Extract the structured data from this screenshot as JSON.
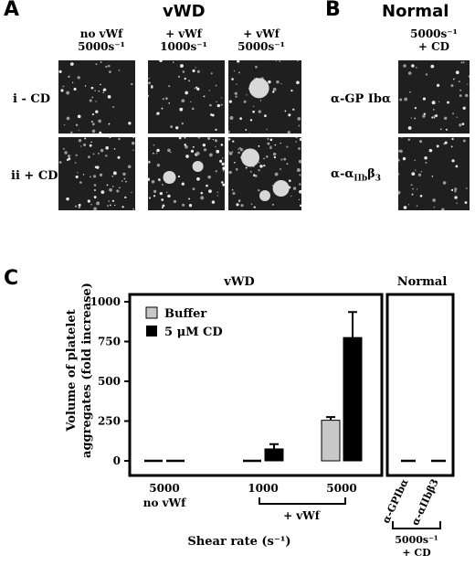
{
  "panelA": {
    "letter": "A",
    "title": "vWD",
    "col1": [
      "no vWf",
      "5000s⁻¹"
    ],
    "col2": [
      "+ vWf",
      "1000s⁻¹"
    ],
    "col3": [
      "+ vWf",
      "5000s⁻¹"
    ],
    "row1": "i - CD",
    "row2": "ii + CD"
  },
  "panelB": {
    "letter": "B",
    "title": "Normal",
    "col": [
      "5000s⁻¹",
      "+ CD"
    ],
    "row1": "α-GP Ibα",
    "row2_main": "α-α",
    "row2_sub": "IIb",
    "row2_tail": "β",
    "row2_sub2": "3"
  },
  "panelC": {
    "letter": "C",
    "group_left": "vWD",
    "group_right": "Normal",
    "ylabel_line1": "Volume of platelet",
    "ylabel_line2": "aggregates (fold increase)",
    "xlabel": "Shear rate (s⁻¹)",
    "bracket_label": "+ vWf",
    "cat_labels": [
      "5000",
      "1000",
      "5000"
    ],
    "cat_sub": "no vWf",
    "normal_cats": [
      "α-GPIbα",
      "α-αIIbβ3"
    ],
    "normal_footer": [
      "5000s⁻¹",
      "+ CD"
    ]
  },
  "chart_data": {
    "type": "bar",
    "ylim": [
      0,
      1000
    ],
    "yticks": [
      0,
      250,
      500,
      750,
      1000
    ],
    "legend": [
      "Buffer",
      "5 μM CD"
    ],
    "legend_placement": "top-left",
    "colors": {
      "Buffer": "#c8c8c8",
      "5 μM CD": "#000000"
    },
    "categories": [
      "5000 no vWf",
      "1000 + vWf",
      "5000 + vWf",
      "α-GPIbα",
      "α-αIIbβ3"
    ],
    "series": [
      {
        "name": "Buffer",
        "values": [
          0,
          0,
          255,
          0,
          0
        ],
        "errors": [
          0,
          0,
          20,
          0,
          0
        ]
      },
      {
        "name": "5 μM CD",
        "values": [
          0,
          75,
          775,
          0,
          0
        ],
        "errors": [
          0,
          30,
          160,
          0,
          0
        ]
      }
    ]
  }
}
